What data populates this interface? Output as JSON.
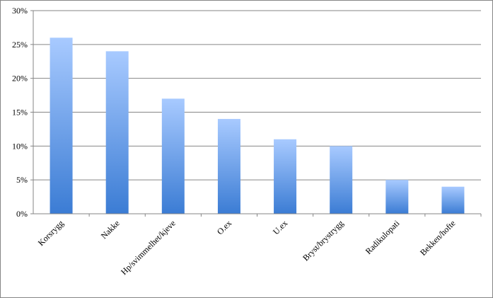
{
  "chart_data": {
    "type": "bar",
    "categories": [
      "Korsrygg",
      "Nakke",
      "Hp/svimmelhet/kjeve",
      "O.ex",
      "U.ex",
      "Bryst/brystrygg",
      "Radikulopati",
      "Bekken/hofte"
    ],
    "values": [
      26,
      24,
      17,
      14,
      11,
      10,
      5,
      4
    ],
    "color": [
      "#a8caff",
      "#3b7cd4"
    ],
    "ylim": [
      0,
      30
    ],
    "yticks": [
      {
        "value": 0,
        "label": "0%"
      },
      {
        "value": 5,
        "label": "5%"
      },
      {
        "value": 10,
        "label": "10%"
      },
      {
        "value": 15,
        "label": "15%"
      },
      {
        "value": 20,
        "label": "20%"
      },
      {
        "value": 25,
        "label": "25%"
      },
      {
        "value": 30,
        "label": "30%"
      }
    ],
    "grid": true
  }
}
